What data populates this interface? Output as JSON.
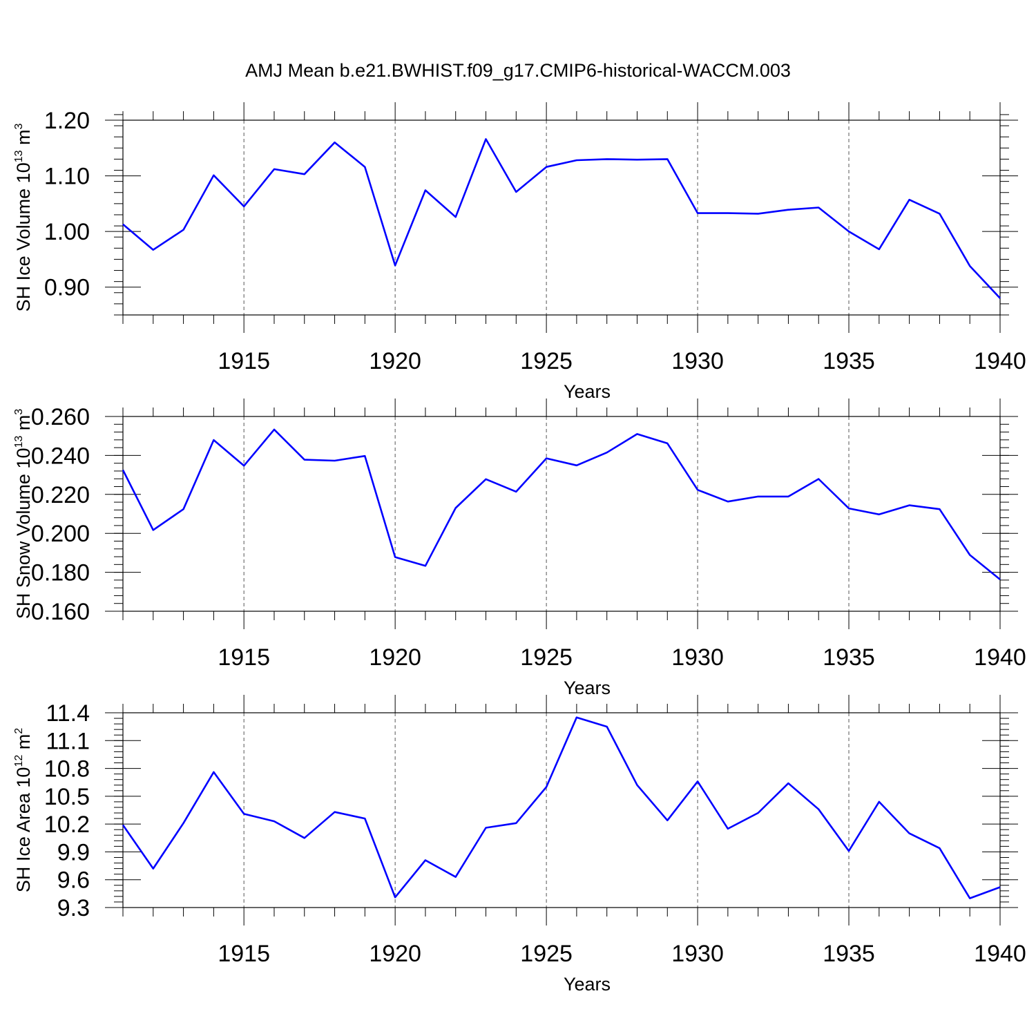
{
  "title": "AMJ Mean b.e21.BWHIST.f09_g17.CMIP6-historical-WACCM.003",
  "colors": {
    "line": "#0000ff",
    "axis": "#000000",
    "grid": "#000000"
  },
  "chart_data": [
    {
      "type": "line",
      "xlabel": "Years",
      "ylabel": {
        "text": "SH Ice Volume 10",
        "sup": "13",
        "unit": " m",
        "unit_sup": "3"
      },
      "xlim": [
        1911,
        1940
      ],
      "ylim": [
        0.85,
        1.2
      ],
      "xticks": [
        1915,
        1920,
        1925,
        1930,
        1935,
        1940
      ],
      "yticks": [
        1.2,
        1.1,
        1.0,
        0.9
      ],
      "ytick_labels": [
        "1.20",
        "1.10",
        "1.00",
        "0.90"
      ],
      "grid": "dashed vertical at major x ticks",
      "x": [
        1911,
        1912,
        1913,
        1914,
        1915,
        1916,
        1917,
        1918,
        1919,
        1920,
        1921,
        1922,
        1923,
        1924,
        1925,
        1926,
        1927,
        1928,
        1929,
        1930,
        1931,
        1932,
        1933,
        1934,
        1935,
        1936,
        1937,
        1938,
        1939,
        1940
      ],
      "series": [
        {
          "values": [
            1.013,
            0.967,
            1.003,
            1.101,
            1.045,
            1.112,
            1.103,
            1.16,
            1.116,
            0.939,
            1.074,
            1.026,
            1.166,
            1.071,
            1.116,
            1.128,
            1.13,
            1.129,
            1.13,
            1.033,
            1.033,
            1.032,
            1.039,
            1.043,
            1.0,
            0.968,
            1.057,
            1.032,
            0.938,
            0.88
          ]
        }
      ]
    },
    {
      "type": "line",
      "xlabel": "Years",
      "ylabel": {
        "text": "SH Snow Volume 10",
        "sup": "13",
        "unit": " m",
        "unit_sup": "3"
      },
      "xlim": [
        1911,
        1940
      ],
      "ylim": [
        0.16,
        0.26
      ],
      "xticks": [
        1915,
        1920,
        1925,
        1930,
        1935,
        1940
      ],
      "yticks": [
        0.26,
        0.24,
        0.22,
        0.2,
        0.18,
        0.16
      ],
      "ytick_labels": [
        "0.260",
        "0.240",
        "0.220",
        "0.200",
        "0.180",
        "0.160"
      ],
      "grid": "dashed vertical at major x ticks",
      "x": [
        1911,
        1912,
        1913,
        1914,
        1915,
        1916,
        1917,
        1918,
        1919,
        1920,
        1921,
        1922,
        1923,
        1924,
        1925,
        1926,
        1927,
        1928,
        1929,
        1930,
        1931,
        1932,
        1933,
        1934,
        1935,
        1936,
        1937,
        1938,
        1939,
        1940
      ],
      "series": [
        {
          "values": [
            0.2325,
            0.2017,
            0.2124,
            0.2479,
            0.2347,
            0.2533,
            0.2378,
            0.2373,
            0.2397,
            0.1878,
            0.1833,
            0.213,
            0.2278,
            0.2214,
            0.2385,
            0.2349,
            0.2415,
            0.251,
            0.2462,
            0.2223,
            0.2163,
            0.2189,
            0.2189,
            0.2279,
            0.2128,
            0.2097,
            0.2144,
            0.2124,
            0.1889,
            0.1763
          ]
        }
      ]
    },
    {
      "type": "line",
      "xlabel": "Years",
      "ylabel": {
        "text": "SH Ice Area 10",
        "sup": "12",
        "unit": " m",
        "unit_sup": "2"
      },
      "xlim": [
        1911,
        1940
      ],
      "ylim": [
        9.3,
        11.4
      ],
      "xticks": [
        1915,
        1920,
        1925,
        1930,
        1935,
        1940
      ],
      "yticks": [
        11.4,
        11.1,
        10.8,
        10.5,
        10.2,
        9.9,
        9.6,
        9.3
      ],
      "ytick_labels": [
        "11.4",
        "11.1",
        "10.8",
        "10.5",
        "10.2",
        "9.9",
        "9.6",
        "9.3"
      ],
      "grid": "dashed vertical at major x ticks",
      "x": [
        1911,
        1912,
        1913,
        1914,
        1915,
        1916,
        1917,
        1918,
        1919,
        1920,
        1921,
        1922,
        1923,
        1924,
        1925,
        1926,
        1927,
        1928,
        1929,
        1930,
        1931,
        1932,
        1933,
        1934,
        1935,
        1936,
        1937,
        1938,
        1939,
        1940
      ],
      "series": [
        {
          "values": [
            10.19,
            9.72,
            10.21,
            10.76,
            10.31,
            10.23,
            10.05,
            10.33,
            10.26,
            9.41,
            9.81,
            9.63,
            10.16,
            10.21,
            10.6,
            11.35,
            11.25,
            10.62,
            10.24,
            10.66,
            10.15,
            10.32,
            10.64,
            10.36,
            9.91,
            10.44,
            10.1,
            9.94,
            9.4,
            9.52
          ]
        }
      ]
    }
  ]
}
